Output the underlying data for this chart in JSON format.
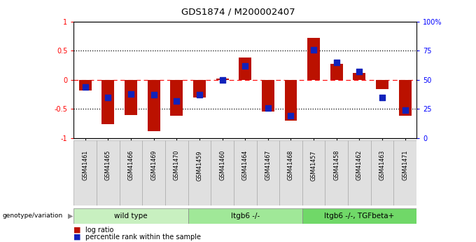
{
  "title": "GDS1874 / M200002407",
  "samples": [
    "GSM41461",
    "GSM41465",
    "GSM41466",
    "GSM41469",
    "GSM41470",
    "GSM41459",
    "GSM41460",
    "GSM41464",
    "GSM41467",
    "GSM41468",
    "GSM41457",
    "GSM41458",
    "GSM41462",
    "GSM41463",
    "GSM41471"
  ],
  "log_ratio": [
    -0.18,
    -0.76,
    -0.6,
    -0.88,
    -0.62,
    -0.3,
    0.02,
    0.38,
    -0.54,
    -0.7,
    0.72,
    0.27,
    0.12,
    -0.16,
    -0.62
  ],
  "percentile_rank": [
    44,
    35,
    38,
    37,
    32,
    37,
    50,
    62,
    26,
    19,
    76,
    65,
    57,
    35,
    24
  ],
  "groups": [
    {
      "label": "wild type",
      "start": 0,
      "end": 5,
      "color": "#c8f0c0"
    },
    {
      "label": "Itgb6 -/-",
      "start": 5,
      "end": 10,
      "color": "#a0e898"
    },
    {
      "label": "Itgb6 -/-, TGFbeta+",
      "start": 10,
      "end": 15,
      "color": "#70d868"
    }
  ],
  "bar_color": "#bb1100",
  "dot_color": "#1122bb",
  "ylim": [
    -1.0,
    1.0
  ],
  "y2lim": [
    0,
    100
  ],
  "yticks": [
    -1.0,
    -0.5,
    0.0,
    0.5,
    1.0
  ],
  "ytick_labels": [
    "-1",
    "-0.5",
    "0",
    "0.5",
    "1"
  ],
  "y2ticks": [
    0,
    25,
    50,
    75,
    100
  ],
  "y2tick_labels": [
    "0",
    "25",
    "50",
    "75",
    "100%"
  ],
  "hlines_dotted": [
    -0.5,
    0.5
  ],
  "hline_red": 0.0,
  "bar_width": 0.55,
  "dot_size": 35,
  "bg_color": "#ffffff",
  "spine_color": "#000000",
  "xtick_bg": "#e0e0e0"
}
